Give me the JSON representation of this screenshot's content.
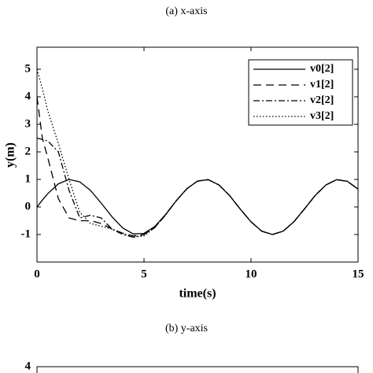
{
  "chart_data": [
    {
      "type": "line",
      "title": "(a)  x-axis",
      "xlabel": "time(s)",
      "ylabel": "y(m)",
      "xlim": [
        0,
        15
      ],
      "ylim": [
        -2,
        5.8
      ],
      "xticks": [
        0,
        5,
        10,
        15
      ],
      "yticks": [
        -1,
        0,
        1,
        2,
        3,
        4,
        5
      ],
      "legend": "upper right",
      "x": [
        0,
        0.25,
        0.5,
        1,
        1.5,
        2,
        2.5,
        3,
        3.5,
        4,
        4.5,
        5,
        5.5,
        6,
        6.5,
        7,
        7.5,
        8,
        8.5,
        9,
        9.5,
        10,
        10.5,
        11,
        11.5,
        12,
        12.5,
        13,
        13.5,
        14,
        14.5,
        15
      ],
      "series": [
        {
          "name": "v0[2]",
          "color": "#000000",
          "style": "solid",
          "values": [
            0,
            0.25,
            0.48,
            0.84,
            1.0,
            0.91,
            0.6,
            0.14,
            -0.35,
            -0.76,
            -0.98,
            -0.96,
            -0.71,
            -0.28,
            0.22,
            0.66,
            0.94,
            0.99,
            0.8,
            0.41,
            -0.08,
            -0.54,
            -0.88,
            -1.0,
            -0.88,
            -0.54,
            -0.07,
            0.42,
            0.8,
            0.99,
            0.93,
            0.65
          ]
        },
        {
          "name": "v1[2]",
          "color": "#000000",
          "style": "dashed",
          "values": [
            4,
            2.5,
            1.8,
            0.3,
            -0.4,
            -0.5,
            -0.5,
            -0.6,
            -0.8,
            -0.95,
            -1.05,
            -1.0,
            -0.75,
            -0.28,
            0.22,
            0.66,
            0.94,
            0.99,
            0.8,
            0.41,
            -0.08,
            -0.54,
            -0.88,
            -1.0,
            -0.88,
            -0.54,
            -0.07,
            0.42,
            0.8,
            0.99,
            0.93,
            0.65
          ]
        },
        {
          "name": "v2[2]",
          "color": "#000000",
          "style": "dashdot",
          "values": [
            2.5,
            2.45,
            2.4,
            2.0,
            0.6,
            -0.4,
            -0.3,
            -0.4,
            -0.8,
            -1.0,
            -1.1,
            -1.0,
            -0.75,
            -0.3,
            0.22,
            0.66,
            0.94,
            0.99,
            0.8,
            0.41,
            -0.08,
            -0.54,
            -0.88,
            -1.0,
            -0.88,
            -0.54,
            -0.07,
            0.42,
            0.8,
            0.99,
            0.93,
            0.65
          ]
        },
        {
          "name": "v3[2]",
          "color": "#000000",
          "style": "dotted",
          "values": [
            5,
            4.3,
            3.5,
            2.3,
            1.0,
            -0.2,
            -0.6,
            -0.7,
            -0.8,
            -0.95,
            -1.1,
            -1.05,
            -0.75,
            -0.3,
            0.22,
            0.66,
            0.94,
            0.99,
            0.8,
            0.41,
            -0.08,
            -0.54,
            -0.88,
            -1.0,
            -0.88,
            -0.54,
            -0.07,
            0.42,
            0.8,
            0.99,
            0.93,
            0.65
          ]
        }
      ]
    },
    {
      "type": "frame",
      "title": "(b)  y-axis",
      "yticks": [
        4
      ]
    }
  ]
}
